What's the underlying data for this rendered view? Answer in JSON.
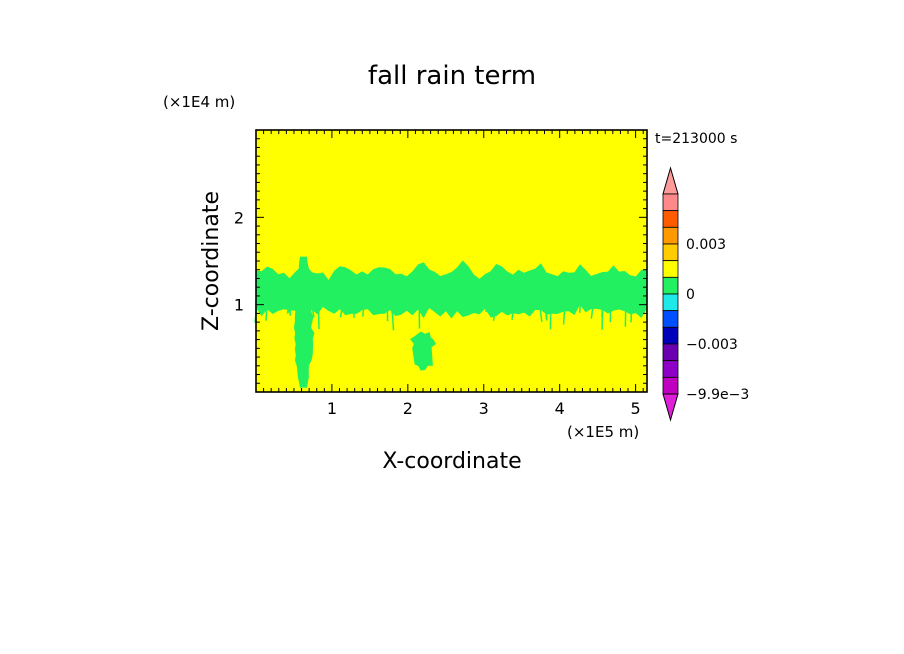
{
  "chart_data": {
    "type": "heatmap",
    "title": "fall rain term",
    "xlabel": "X-coordinate",
    "ylabel": "Z-coordinate",
    "x_unit": "(×1E5 m)",
    "y_unit": "(×1E4 m)",
    "time_label": "t=213000 s",
    "xlim": [
      0,
      5.15
    ],
    "ylim": [
      0,
      3.0
    ],
    "x_ticks": [
      1,
      2,
      3,
      4,
      5
    ],
    "y_ticks": [
      1,
      2
    ],
    "background_level_color": "#ffff00",
    "feature_color": "#22f060",
    "features": [
      {
        "kind": "band",
        "x_range": [
          0,
          5.15
        ],
        "z_center": 1.18,
        "z_halfwidth": 0.18
      },
      {
        "kind": "plume",
        "x_center": 0.62,
        "z_range": [
          0.05,
          1.55
        ]
      },
      {
        "kind": "blob",
        "x_center": 2.2,
        "z_center": 0.55
      }
    ],
    "colorbar": {
      "levels": [
        {
          "color": "#ff9a9a",
          "type": "arrow-top"
        },
        {
          "color": "#ff8888"
        },
        {
          "color": "#ff5c00"
        },
        {
          "color": "#ff9900"
        },
        {
          "color": "#ffcc00"
        },
        {
          "color": "#ffff00"
        },
        {
          "color": "#22f060"
        },
        {
          "color": "#1ee8e8"
        },
        {
          "color": "#0050ff"
        },
        {
          "color": "#0000bb"
        },
        {
          "color": "#6a00b0"
        },
        {
          "color": "#8e00c8"
        },
        {
          "color": "#c000c0"
        },
        {
          "color": "#e020d8",
          "type": "arrow-bottom"
        }
      ],
      "labels": [
        "0.003",
        "0",
        "−0.003",
        "−9.9e−3"
      ]
    }
  }
}
